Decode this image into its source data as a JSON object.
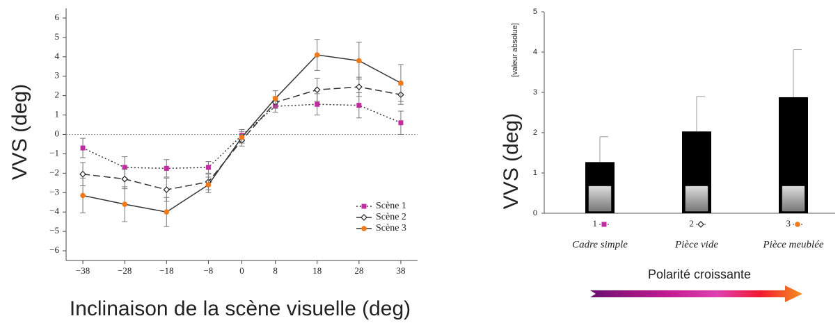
{
  "chart_data": [
    {
      "type": "line",
      "y_label": "VVS (deg)",
      "x_label": "Inclinaison de la scène visuelle (deg)",
      "x": [
        -38,
        -28,
        -18,
        -8,
        0,
        8,
        18,
        28,
        38
      ],
      "xlim": [
        -42,
        42
      ],
      "xticks": [
        {
          "value": -38,
          "label": "−38"
        },
        {
          "value": -28,
          "label": "−28"
        },
        {
          "value": -18,
          "label": "−18"
        },
        {
          "value": -8,
          "label": "−8"
        },
        0,
        8,
        18,
        28,
        38
      ],
      "ylim": [
        -6.5,
        6.5
      ],
      "yticks": [
        {
          "value": -6,
          "label": "−6"
        },
        {
          "value": -5,
          "label": "−5"
        },
        {
          "value": -4,
          "label": "−4"
        },
        {
          "value": -3,
          "label": "−3"
        },
        {
          "value": -2,
          "label": "−2"
        },
        {
          "value": -1,
          "label": "−1"
        },
        0,
        1,
        2,
        3,
        4,
        5,
        6
      ],
      "zero_line": true,
      "grid": false,
      "legend": "lower right",
      "series": [
        {
          "name": "Scène 1",
          "color": "#c02ca0",
          "line_color": "#333333",
          "marker": "square",
          "dash": "dotted",
          "values": [
            -0.7,
            -1.7,
            -1.75,
            -1.7,
            -0.05,
            1.45,
            1.55,
            1.5,
            0.6
          ],
          "errors": [
            0.5,
            0.55,
            0.45,
            0.3,
            0.3,
            0.3,
            0.55,
            0.65,
            0.6
          ]
        },
        {
          "name": "Scène 2",
          "color": "#ffffff",
          "line_color": "#333333",
          "marker": "diamond",
          "dash": "dashed",
          "values": [
            -2.05,
            -2.3,
            -2.85,
            -2.45,
            -0.3,
            1.65,
            2.3,
            2.45,
            2.05
          ],
          "errors": [
            0.6,
            0.5,
            0.6,
            0.4,
            0.3,
            0.3,
            0.6,
            0.5,
            0.5
          ]
        },
        {
          "name": "Scène 3",
          "color": "#f07a1a",
          "line_color": "#333333",
          "marker": "circle",
          "dash": "solid",
          "values": [
            -3.15,
            -3.6,
            -4.0,
            -2.6,
            -0.15,
            1.85,
            4.1,
            3.8,
            2.65
          ],
          "errors": [
            0.9,
            0.9,
            0.75,
            0.4,
            0.3,
            0.4,
            0.8,
            0.95,
            0.95
          ]
        }
      ]
    },
    {
      "type": "bar",
      "y_label": "VVS (deg)",
      "y_sublabel": "[valeur absolue]",
      "categories": [
        "1",
        "2",
        "3"
      ],
      "category_names": [
        "Cadre simple",
        "Pièce vide",
        "Pièce meublée"
      ],
      "values": [
        1.27,
        2.03,
        2.88
      ],
      "errors": [
        0.63,
        0.87,
        1.18
      ],
      "color": "#000000",
      "ylim": [
        0,
        5
      ],
      "yticks": [
        0,
        1,
        2,
        3,
        4,
        5
      ],
      "annotation": "Polarité croissante"
    }
  ]
}
